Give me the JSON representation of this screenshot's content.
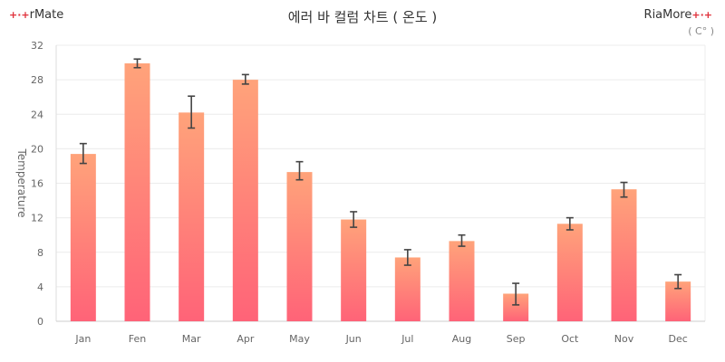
{
  "brand": {
    "left": "rMate",
    "right": "RiaMore"
  },
  "unit": "( C° )",
  "chart_data": {
    "type": "bar",
    "title": "에러 바 컬럼 차트 ( 온도 )",
    "xlabel": "",
    "ylabel": "Temperature",
    "ylim": [
      0,
      32
    ],
    "yticks": [
      0,
      4,
      8,
      12,
      16,
      20,
      24,
      28,
      32
    ],
    "grid": true,
    "categories": [
      "Jan",
      "Fen",
      "Mar",
      "Apr",
      "May",
      "Jun",
      "Jul",
      "Aug",
      "Sep",
      "Oct",
      "Nov",
      "Dec"
    ],
    "values": [
      19.4,
      29.9,
      24.2,
      28.0,
      17.3,
      11.8,
      7.4,
      9.3,
      3.2,
      11.3,
      15.3,
      4.6
    ],
    "error_low": [
      18.3,
      29.4,
      22.4,
      27.5,
      16.4,
      10.9,
      6.5,
      8.7,
      1.9,
      10.6,
      14.4,
      3.8
    ],
    "error_high": [
      20.6,
      30.4,
      26.1,
      28.6,
      18.5,
      12.7,
      8.3,
      10.0,
      4.4,
      12.0,
      16.1,
      5.4
    ],
    "colors": {
      "bar_top": "#ffa37a",
      "bar_bottom": "#ff6378",
      "error": "#444444",
      "grid": "#ececec"
    }
  }
}
